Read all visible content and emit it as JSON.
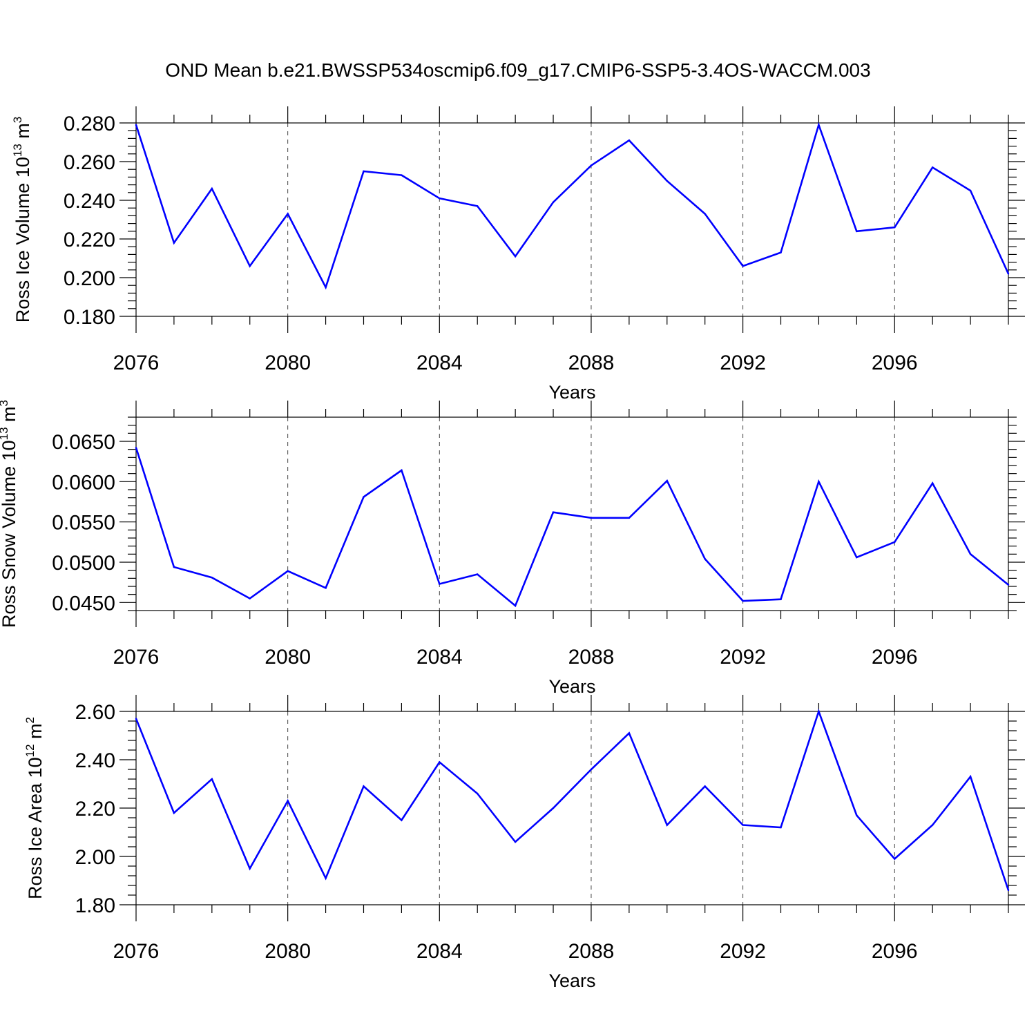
{
  "title": "OND Mean b.e21.BWSSP534oscmip6.f09_g17.CMIP6-SSP5-3.4OS-WACCM.003",
  "colors": {
    "line": "#0000ff",
    "axis": "#000000",
    "grid": "#444444"
  },
  "chart_data": [
    {
      "type": "line",
      "xlabel": "Years",
      "ylabel": "Ross Ice Volume 10",
      "ylabel_exp": "13",
      "ylabel_unit": " m",
      "ylabel_unit_exp": "3",
      "xlim": [
        2076,
        2099
      ],
      "ylim": [
        0.18,
        0.28
      ],
      "x_ticks": [
        "2076",
        "2080",
        "2084",
        "2088",
        "2092",
        "2096"
      ],
      "y_ticks": [
        "0.180",
        "0.200",
        "0.220",
        "0.240",
        "0.260",
        "0.280"
      ],
      "grid": "vertical dashed at major x ticks",
      "x": [
        2076,
        2077,
        2078,
        2079,
        2080,
        2081,
        2082,
        2083,
        2084,
        2085,
        2086,
        2087,
        2088,
        2089,
        2090,
        2091,
        2092,
        2093,
        2094,
        2095,
        2096,
        2097,
        2098,
        2099
      ],
      "values": [
        0.279,
        0.218,
        0.246,
        0.206,
        0.233,
        0.195,
        0.255,
        0.253,
        0.241,
        0.237,
        0.211,
        0.239,
        0.258,
        0.271,
        0.25,
        0.233,
        0.206,
        0.213,
        0.279,
        0.224,
        0.226,
        0.257,
        0.245,
        0.202
      ]
    },
    {
      "type": "line",
      "xlabel": "Years",
      "ylabel": "Ross Snow Volume 10",
      "ylabel_exp": "13",
      "ylabel_unit": " m",
      "ylabel_unit_exp": "3",
      "xlim": [
        2076,
        2099
      ],
      "ylim": [
        0.044,
        0.068
      ],
      "x_ticks": [
        "2076",
        "2080",
        "2084",
        "2088",
        "2092",
        "2096"
      ],
      "y_ticks": [
        "0.0450",
        "0.0500",
        "0.0550",
        "0.0600",
        "0.0650"
      ],
      "grid": "vertical dashed at major x ticks",
      "x": [
        2076,
        2077,
        2078,
        2079,
        2080,
        2081,
        2082,
        2083,
        2084,
        2085,
        2086,
        2087,
        2088,
        2089,
        2090,
        2091,
        2092,
        2093,
        2094,
        2095,
        2096,
        2097,
        2098,
        2099
      ],
      "values": [
        0.0642,
        0.0494,
        0.0481,
        0.0455,
        0.0489,
        0.0468,
        0.0581,
        0.0614,
        0.0473,
        0.0485,
        0.0446,
        0.0562,
        0.0555,
        0.0555,
        0.0601,
        0.0504,
        0.0452,
        0.0454,
        0.06,
        0.0506,
        0.0525,
        0.0598,
        0.051,
        0.0472
      ]
    },
    {
      "type": "line",
      "xlabel": "Years",
      "ylabel": "Ross Ice Area 10",
      "ylabel_exp": "12",
      "ylabel_unit": " m",
      "ylabel_unit_exp": "2",
      "xlim": [
        2076,
        2099
      ],
      "ylim": [
        1.8,
        2.6
      ],
      "x_ticks": [
        "2076",
        "2080",
        "2084",
        "2088",
        "2092",
        "2096"
      ],
      "y_ticks": [
        "1.80",
        "2.00",
        "2.20",
        "2.40",
        "2.60"
      ],
      "grid": "vertical dashed at major x ticks",
      "x": [
        2076,
        2077,
        2078,
        2079,
        2080,
        2081,
        2082,
        2083,
        2084,
        2085,
        2086,
        2087,
        2088,
        2089,
        2090,
        2091,
        2092,
        2093,
        2094,
        2095,
        2096,
        2097,
        2098,
        2099
      ],
      "values": [
        2.57,
        2.18,
        2.32,
        1.95,
        2.23,
        1.91,
        2.29,
        2.15,
        2.39,
        2.26,
        2.06,
        2.2,
        2.36,
        2.51,
        2.13,
        2.29,
        2.13,
        2.12,
        2.6,
        2.17,
        1.99,
        2.13,
        2.33,
        1.86
      ]
    }
  ]
}
